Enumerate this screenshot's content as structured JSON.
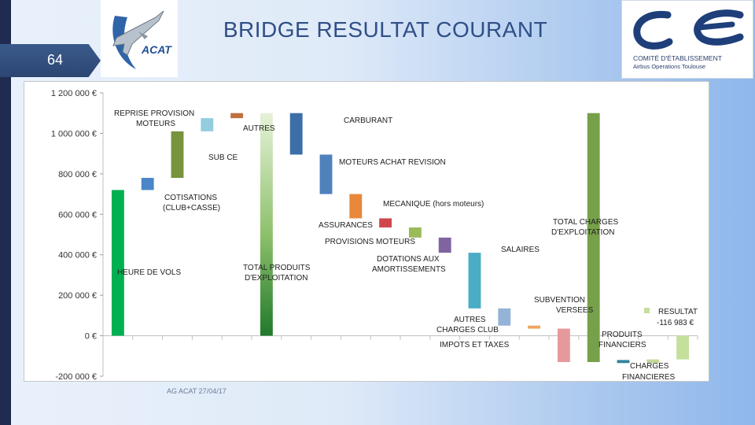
{
  "slide": {
    "title": "BRIDGE RESULTAT COURANT",
    "number": "64",
    "footer": "AG ACAT 27/04/17"
  },
  "logos": {
    "acat_text": "ACAT",
    "ce_line1": "COMITÉ D'ÉTABLISSEMENT",
    "ce_line2": "Airbus Operations Toulouse"
  },
  "chart_data": {
    "type": "bar",
    "subtype": "waterfall",
    "title": "",
    "xlabel": "",
    "ylabel": "",
    "ylim": [
      -200000,
      1200000
    ],
    "yticks": [
      -200000,
      0,
      200000,
      400000,
      600000,
      800000,
      1000000,
      1200000
    ],
    "ytick_labels": [
      "-200 000 €",
      "0 €",
      "200 000 €",
      "400 000 €",
      "600 000 €",
      "800 000 €",
      "1 000 000 €",
      "1 200 000 €"
    ],
    "grid": false,
    "bars": [
      {
        "label": "HEURE DE VOLS",
        "start": 0,
        "end": 720000,
        "color": "#00b050"
      },
      {
        "label": "COTISATIONS (CLUB+CASSE)",
        "start": 720000,
        "end": 780000,
        "color": "#4a86c8"
      },
      {
        "label": "REPRISE PROVISION MOTEURS",
        "start": 780000,
        "end": 1010000,
        "color": "#77933c"
      },
      {
        "label": "SUB CE",
        "start": 1010000,
        "end": 1075000,
        "color": "#93cddd"
      },
      {
        "label": "AUTRES",
        "start": 1075000,
        "end": 1100000,
        "color": "#c0703e"
      },
      {
        "label": "TOTAL PRODUITS D'EXPLOITATION",
        "start": 0,
        "end": 1100000,
        "color": "gradient-green"
      },
      {
        "label": "CARBURANT",
        "start": 1100000,
        "end": 895000,
        "color": "#3e6ea8"
      },
      {
        "label": "MOTEURS ACHAT REVISION",
        "start": 895000,
        "end": 700000,
        "color": "#4f81bd"
      },
      {
        "label": "MECANIQUE (hors moteurs)",
        "start": 700000,
        "end": 580000,
        "color": "#e8883a"
      },
      {
        "label": "ASSURANCES",
        "start": 580000,
        "end": 535000,
        "color": "#d0474b"
      },
      {
        "label": "PROVISIONS MOTEURS",
        "start": 535000,
        "end": 485000,
        "color": "#9bbb59"
      },
      {
        "label": "DOTATIONS AUX AMORTISSEMENTS",
        "start": 485000,
        "end": 410000,
        "color": "#8064a2"
      },
      {
        "label": "SALAIRES",
        "start": 410000,
        "end": 135000,
        "color": "#4bacc6"
      },
      {
        "label": "AUTRES CHARGES CLUB",
        "start": 135000,
        "end": 50000,
        "color": "#95b3d7"
      },
      {
        "label": "IMPOTS ET TAXES",
        "start": 50000,
        "end": 35000,
        "color": "#f2a55e"
      },
      {
        "label": "SUBVENTION VERSEES",
        "start": 35000,
        "end": -130000,
        "color": "#e6999b"
      },
      {
        "label": "TOTAL CHARGES D'EXPLOITATION",
        "start": -130000,
        "end": 1100000,
        "color": "#77a04a"
      },
      {
        "label": "CHARGES FINANCIERES",
        "start": -120000,
        "end": -135000,
        "color": "#31849b"
      },
      {
        "label": "PRODUITS FINANCIERS",
        "start": -135000,
        "end": -117000,
        "color": "#c4d79b"
      },
      {
        "label": "RESULTAT",
        "start": 0,
        "end": -116983,
        "color": "#c4e09a"
      }
    ],
    "legend": [
      {
        "name": "RESULTAT",
        "value": "-116 983 €",
        "color": "#c4e09a"
      }
    ],
    "annotations": [
      {
        "text": "HEURE DE VOLS"
      },
      {
        "text": "COTISATIONS"
      },
      {
        "text": "(CLUB+CASSE)"
      },
      {
        "text": "REPRISE PROVISION"
      },
      {
        "text": "MOTEURS"
      },
      {
        "text": "SUB CE"
      },
      {
        "text": "AUTRES"
      },
      {
        "text": "TOTAL PRODUITS"
      },
      {
        "text": "D'EXPLOITATION"
      },
      {
        "text": "CARBURANT"
      },
      {
        "text": "MOTEURS ACHAT REVISION"
      },
      {
        "text": "MECANIQUE (hors moteurs)"
      },
      {
        "text": "ASSURANCES"
      },
      {
        "text": "PROVISIONS MOTEURS"
      },
      {
        "text": "DOTATIONS AUX"
      },
      {
        "text": "AMORTISSEMENTS"
      },
      {
        "text": "SALAIRES"
      },
      {
        "text": "AUTRES"
      },
      {
        "text": "CHARGES CLUB"
      },
      {
        "text": "IMPOTS ET TAXES"
      },
      {
        "text": "SUBVENTION"
      },
      {
        "text": "VERSEES"
      },
      {
        "text": "TOTAL CHARGES"
      },
      {
        "text": "D'EXPLOITATION"
      },
      {
        "text": "PRODUITS"
      },
      {
        "text": "FINANCIERS"
      },
      {
        "text": "CHARGES"
      },
      {
        "text": "FINANCIERES"
      }
    ]
  }
}
